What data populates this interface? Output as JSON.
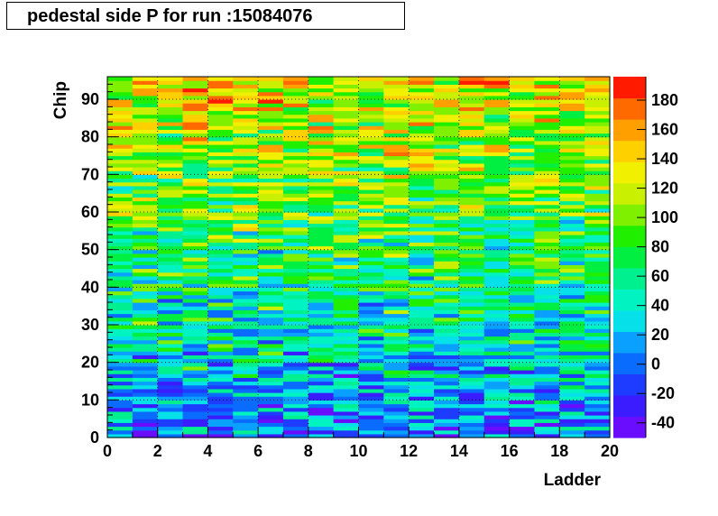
{
  "title": "pedestal side P for run :15084076",
  "chart_data": {
    "type": "heatmap",
    "xlabel": "Ladder",
    "ylabel": "Chip",
    "x_range": [
      0,
      20
    ],
    "y_range": [
      0,
      96
    ],
    "x_bins": 20,
    "y_bins": 96,
    "z_range": [
      -50,
      196
    ],
    "x_ticks": [
      "0",
      "2",
      "4",
      "6",
      "8",
      "10",
      "12",
      "14",
      "16",
      "18",
      "20"
    ],
    "y_ticks": [
      "0",
      "10",
      "20",
      "30",
      "40",
      "50",
      "60",
      "70",
      "80",
      "90"
    ],
    "colorbar_ticks": [
      "-40",
      "-20",
      "0",
      "20",
      "40",
      "60",
      "80",
      "100",
      "120",
      "140",
      "160",
      "180"
    ],
    "colorbar_tick_values": [
      -40,
      -20,
      0,
      20,
      40,
      60,
      80,
      100,
      120,
      140,
      160,
      180
    ],
    "trend_by_row": "values rise from about 0-40 near Chip 0 to about 120-180 near Chip 96",
    "notes": "cell values estimated from colors"
  },
  "palette": [
    "#6a0dff",
    "#3a1cff",
    "#1e3cff",
    "#0a6cff",
    "#0aa0ff",
    "#06e0e8",
    "#00f3c0",
    "#00f090",
    "#00ef40",
    "#20f000",
    "#7ff000",
    "#c8f000",
    "#f0f000",
    "#ffd000",
    "#ffa000",
    "#ff6a00",
    "#ff1a00"
  ]
}
